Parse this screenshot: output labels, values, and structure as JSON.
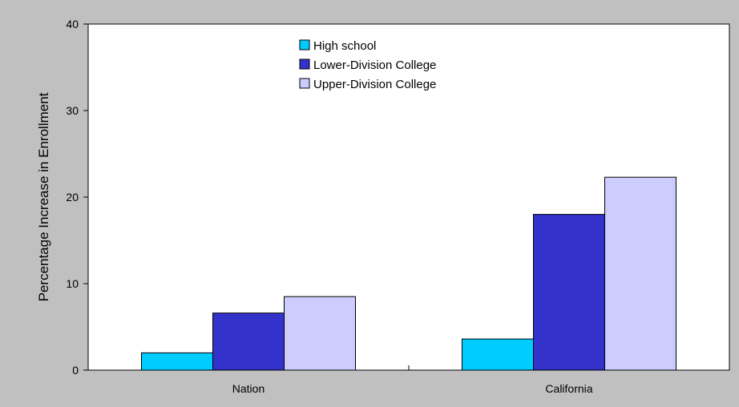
{
  "chart_data": {
    "type": "bar",
    "categories": [
      "Nation",
      "California"
    ],
    "series": [
      {
        "name": "High school",
        "values": [
          2.0,
          3.6
        ],
        "color": "#00ccff"
      },
      {
        "name": "Lower-Division College",
        "values": [
          6.6,
          18.0
        ],
        "color": "#3333cc"
      },
      {
        "name": "Upper-Division College",
        "values": [
          8.5,
          22.3
        ],
        "color": "#ccccff"
      }
    ],
    "title": "",
    "xlabel": "",
    "ylabel": "Percentage Increase in Enrollment",
    "ylim": [
      0,
      40
    ],
    "yticks": [
      0,
      10,
      20,
      30,
      40
    ],
    "grid": false,
    "legend_position": "top-center",
    "colors": {
      "page_background": "#c0c0c0",
      "plot_background": "#ffffff",
      "axis": "#000000"
    }
  }
}
